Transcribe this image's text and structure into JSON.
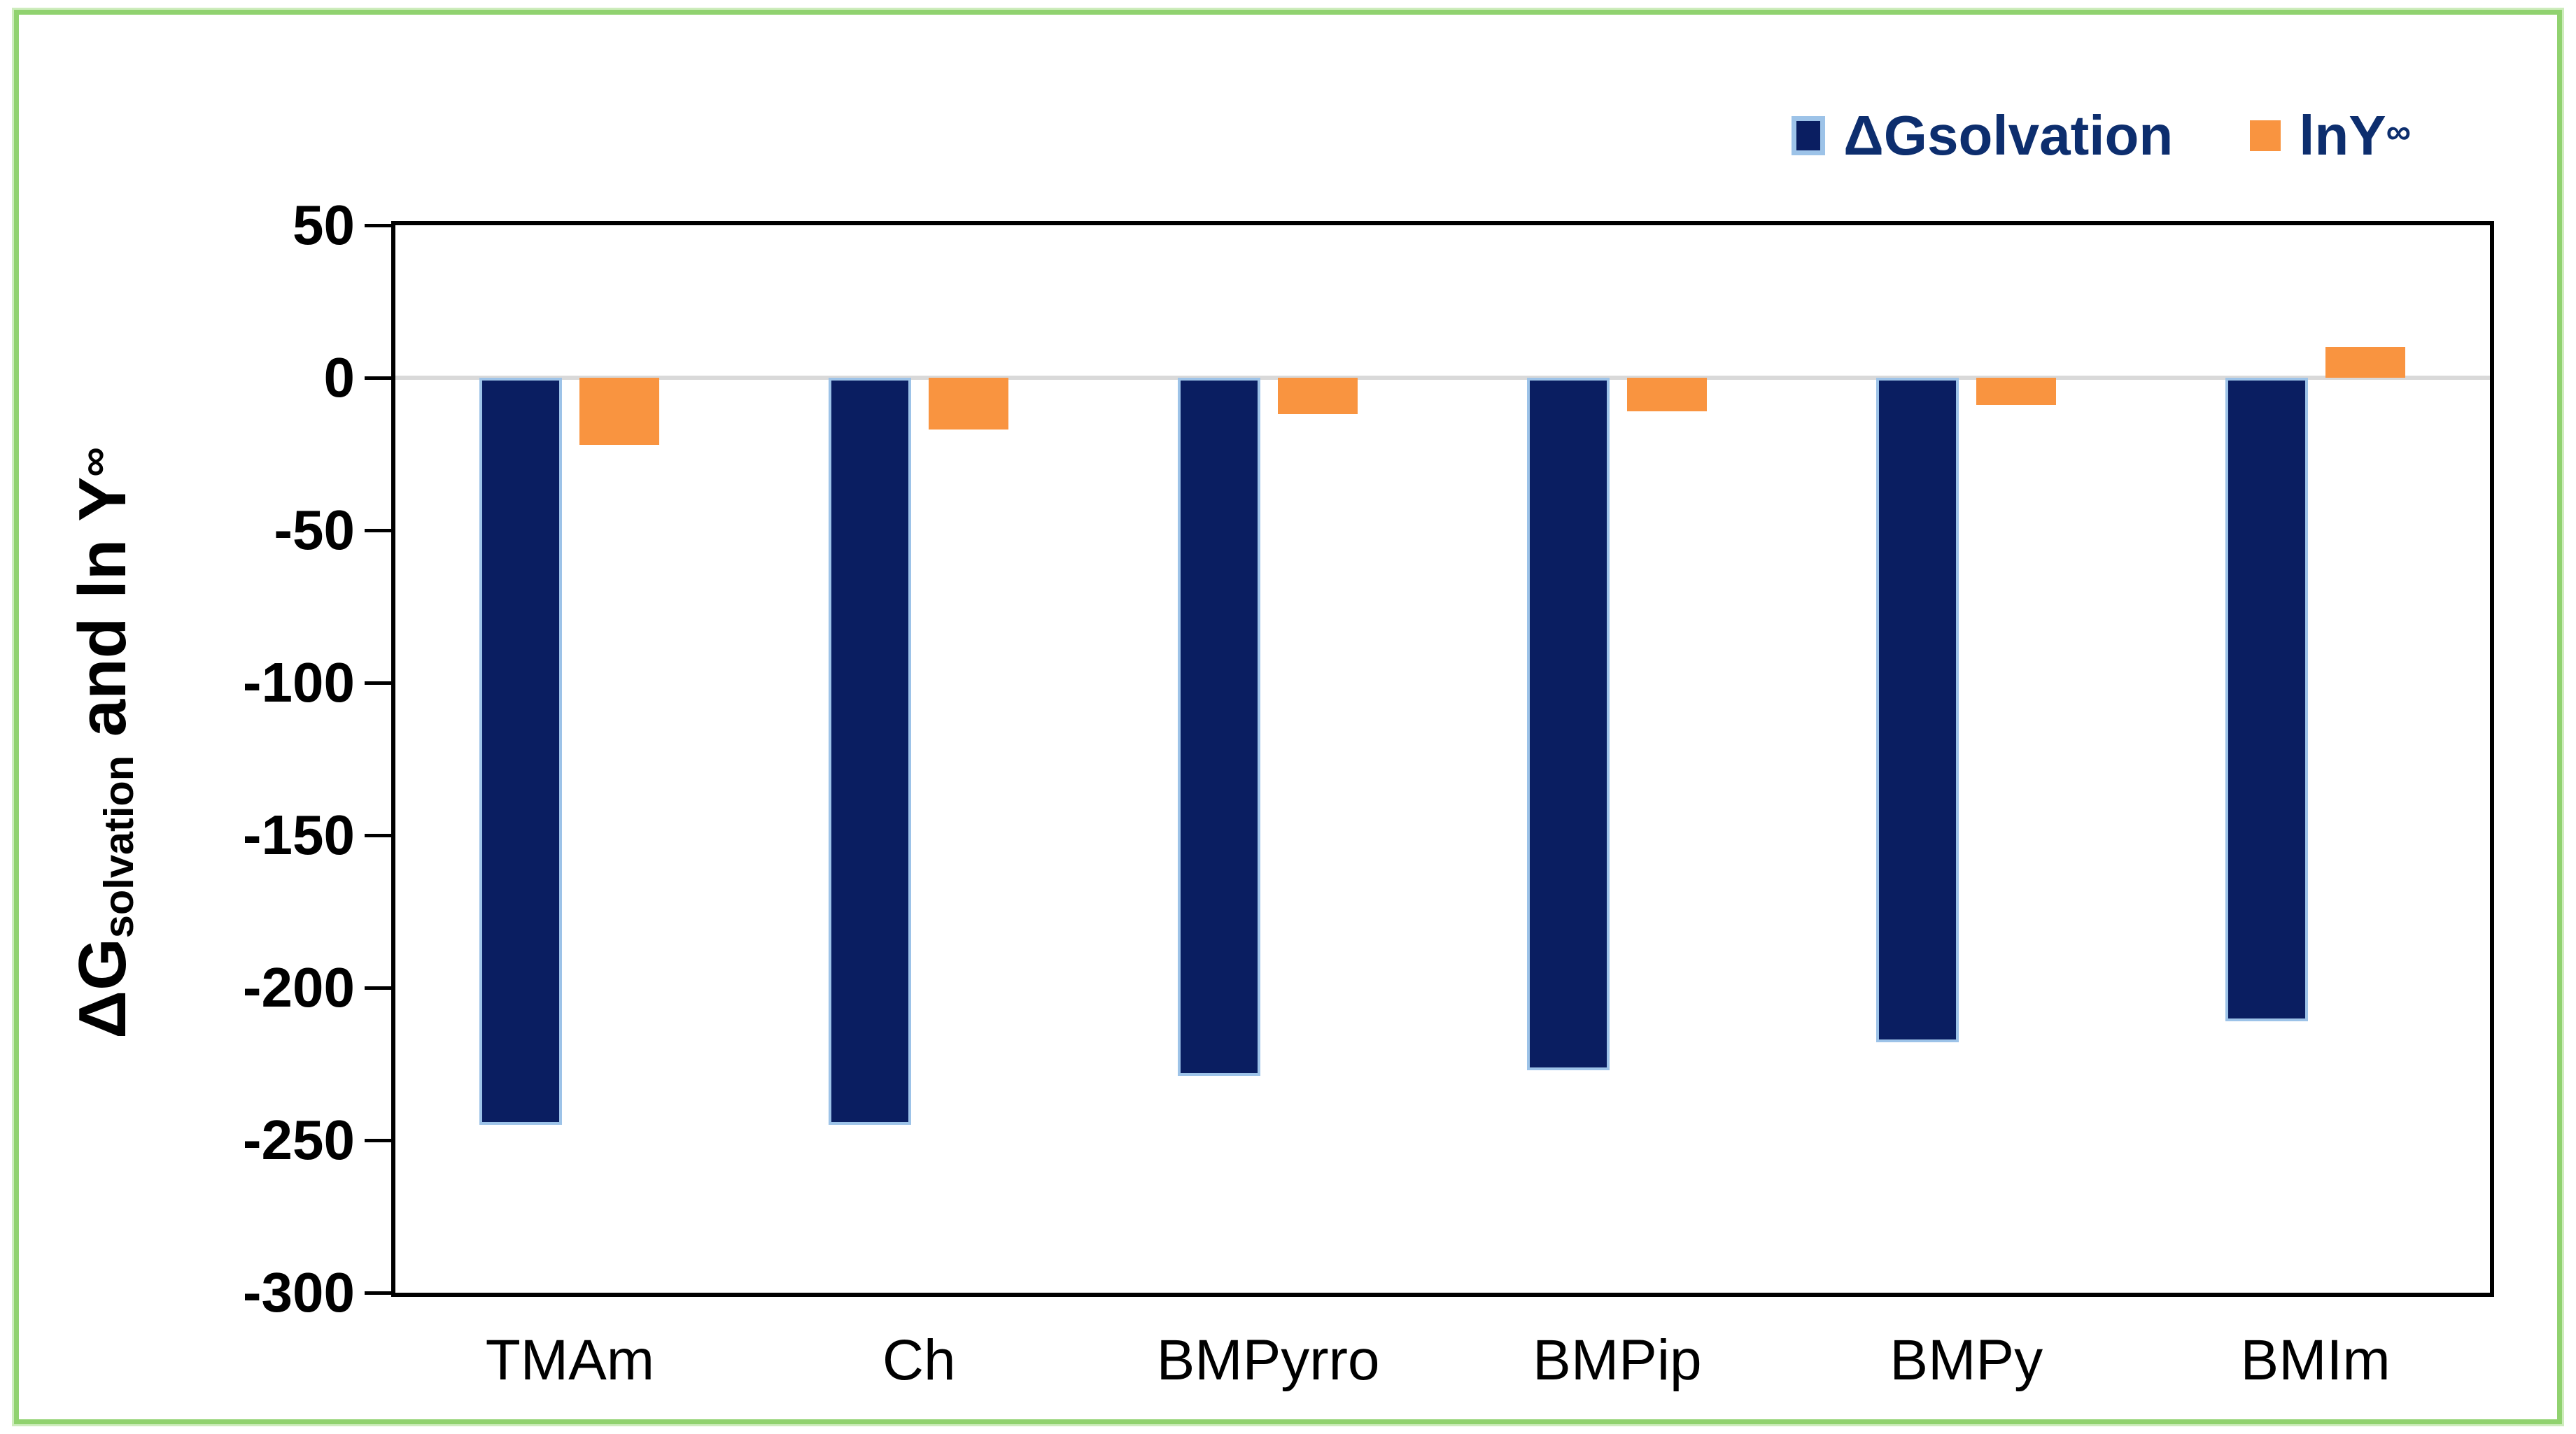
{
  "figure": {
    "frame_color": "#90D26F",
    "background_color": "#FFFFFF",
    "plot_border_color": "#000000"
  },
  "legend": {
    "entries": [
      {
        "label": "ΔGsolvation",
        "swatch_color": "#0A1E61",
        "swatch_border_color": "#9DC3E8"
      },
      {
        "label_base": "lnY",
        "label_sup": "∞",
        "swatch_color": "#F99440"
      }
    ]
  },
  "y_axis": {
    "title_main": "ΔG",
    "title_sub": "solvation",
    "title_mid": " and ln Y",
    "title_sup": "∞"
  },
  "chart_data": {
    "type": "bar",
    "categories": [
      "TMAm",
      "Ch",
      "BMPyrro",
      "BMPip",
      "BMPy",
      "BMIm"
    ],
    "series": [
      {
        "name": "ΔGsolvation",
        "color": "#0A1E61",
        "border_color": "#9DC3E8",
        "values": [
          -245,
          -245,
          -229,
          -227,
          -218,
          -211
        ]
      },
      {
        "name": "lnY∞",
        "color": "#F99440",
        "values": [
          -22,
          -17,
          -12,
          -11,
          -9,
          10
        ]
      }
    ],
    "title": "",
    "xlabel": "",
    "ylabel": "ΔGsolvation and ln Y∞",
    "ylim": [
      -300,
      50
    ],
    "yticks": [
      50,
      0,
      -50,
      -100,
      -150,
      -200,
      -250,
      -300
    ],
    "zero_line_color": "#D9D9D9",
    "grid": "zero-line-only",
    "legend_position": "top-right"
  }
}
